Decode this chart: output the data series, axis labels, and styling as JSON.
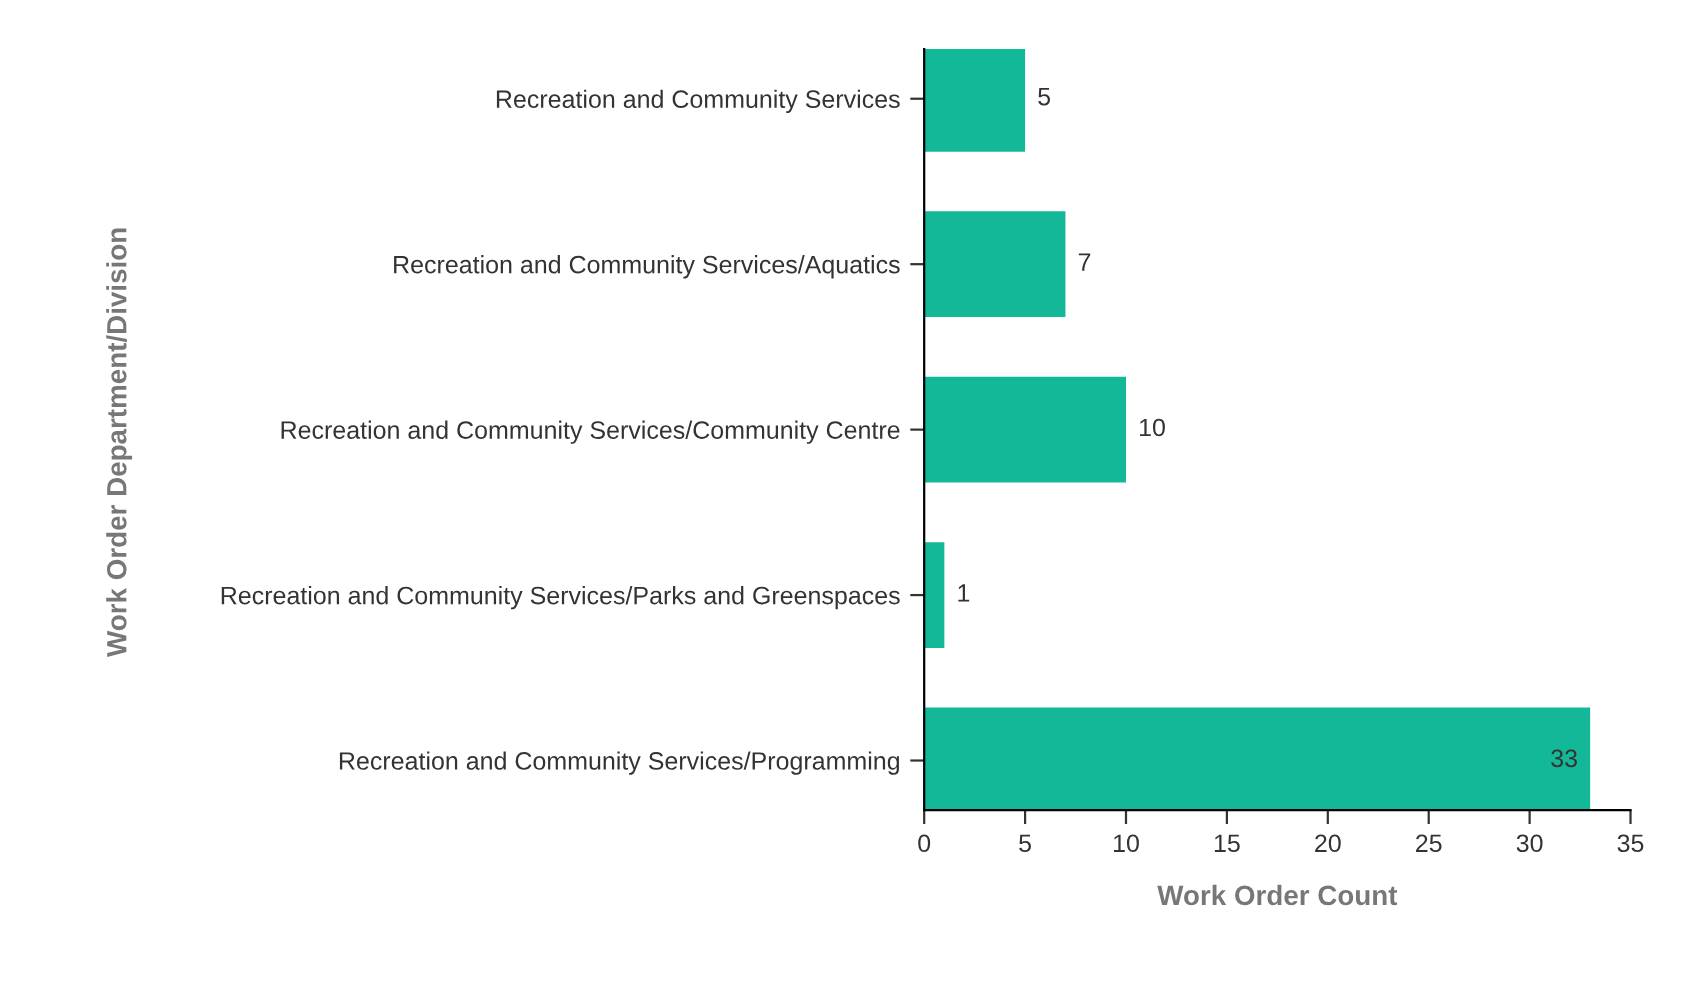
{
  "chart_data": {
    "type": "bar",
    "orientation": "horizontal",
    "xlabel": "Work Order Count",
    "ylabel": "Work Order Department/Division",
    "categories": [
      "Recreation and Community Services",
      "Recreation and Community Services/Aquatics",
      "Recreation and Community Services/Community Centre",
      "Recreation and Community Services/Parks and Greenspaces",
      "Recreation and Community Services/Programming"
    ],
    "values": [
      5,
      7,
      10,
      1,
      33
    ],
    "color": "#13b898",
    "xlim": [
      0,
      35
    ],
    "xticks": [
      0,
      5,
      10,
      15,
      20,
      25,
      30,
      35
    ],
    "data_labels": true,
    "grid": false,
    "legend": false
  }
}
